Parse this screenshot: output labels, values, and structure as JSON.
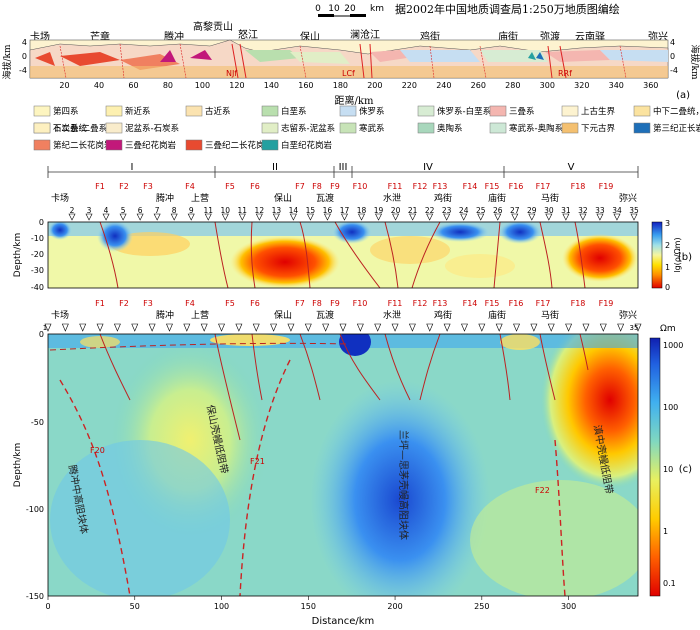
{
  "panel_a": {
    "scale_bar": {
      "ticks": [
        "0",
        "10",
        "20"
      ],
      "unit": "km"
    },
    "source_note": "据2002年中国地质调查局1:250万地质图编绘",
    "ylabel_left": "海拔/km",
    "ylabel_right": "海拔/km",
    "yticks": [
      "4",
      "0",
      "-4"
    ],
    "xlabel": "距离/km",
    "xticks": [
      "20",
      "40",
      "60",
      "80",
      "100",
      "120",
      "140",
      "160",
      "180",
      "200",
      "220",
      "240",
      "260",
      "280",
      "300",
      "320",
      "340",
      "360"
    ],
    "places": [
      "卡场",
      "芒章",
      "腾冲",
      "高黎贡山",
      "怒江",
      "保山",
      "澜沧江",
      "鸡街",
      "庙街",
      "弥渡",
      "云南驿",
      "弥兴"
    ],
    "faults": [
      "NJf",
      "LCf",
      "RRf"
    ],
    "panel_label": "(a)"
  },
  "legend": {
    "items": [
      {
        "label": "第四系",
        "color": "#fdf5c0"
      },
      {
        "label": "新近系",
        "color": "#fdf0b0"
      },
      {
        "label": "古近系",
        "color": "#fbe3b0"
      },
      {
        "label": "白垩系",
        "color": "#b9dfae"
      },
      {
        "label": "侏罗系",
        "color": "#c6def2"
      },
      {
        "label": "侏罗系-白垩系",
        "color": "#d7ecd3"
      },
      {
        "label": "三叠系",
        "color": "#f4b6b0"
      },
      {
        "label": "上古生界",
        "color": "#fdf3d0"
      },
      {
        "label": "中下二叠统，峨眉山玄武岩",
        "color": "#fbe3a0"
      },
      {
        "label": "石炭系-二叠系",
        "color": "#f6d8c6"
      },
      {
        "label": "泥盆系-石炭系",
        "color": "#f9eccb"
      },
      {
        "label": "志留系-泥盆系",
        "color": "#e1eec6"
      },
      {
        "label": "寒武系",
        "color": "#c7e3b7"
      },
      {
        "label": "奥陶系",
        "color": "#a8d7bc"
      },
      {
        "label": "寒武系-奥陶系",
        "color": "#cde8d6"
      },
      {
        "label": "下元古界",
        "color": "#f4c070"
      },
      {
        "label": "第三纪正长岩",
        "color": "#1e6fb8"
      },
      {
        "label": "下二叠统",
        "color": "#fdf0c0"
      },
      {
        "label": "第纪二长花岗岩",
        "color": "#f08060"
      },
      {
        "label": "三叠纪花岗岩",
        "color": "#c2187a"
      },
      {
        "label": "三叠纪二长花岗岩",
        "color": "#e84a30"
      },
      {
        "label": "白垩纪花岗岩",
        "color": "#24a0a0"
      }
    ]
  },
  "zones": [
    "I",
    "II",
    "III",
    "IV",
    "V"
  ],
  "panel_b": {
    "faults": [
      "F1",
      "F2",
      "F3",
      "F4",
      "F5",
      "F6",
      "F7",
      "F8",
      "F9",
      "F10",
      "F11",
      "F12",
      "F13",
      "F14",
      "F15",
      "F16",
      "F17",
      "F18",
      "F19"
    ],
    "places": [
      "卡场",
      "腾冲",
      "上营",
      "保山",
      "瓦渡",
      "水泄",
      "鸡街",
      "庙街",
      "马街",
      "弥兴"
    ],
    "stations": [
      "2",
      "3",
      "4",
      "5",
      "6",
      "7",
      "8",
      "9",
      "11",
      "10",
      "11",
      "12",
      "13",
      "14",
      "15",
      "16",
      "17",
      "18",
      "19",
      "20",
      "21",
      "22",
      "23",
      "24",
      "25",
      "26",
      "27",
      "29",
      "30",
      "31",
      "32",
      "33",
      "34",
      "35"
    ],
    "ylabel": "Depth/km",
    "yticks": [
      "0",
      "-10",
      "-20",
      "-30",
      "-40"
    ],
    "colorbar_label": "lg(ρ/Ωm)",
    "colorbar_ticks": [
      "3",
      "2",
      "1",
      "0"
    ],
    "panel_label": "(b)"
  },
  "panel_c": {
    "faults": [
      "F1",
      "F2",
      "F3",
      "F4",
      "F5",
      "F6",
      "F7",
      "F8",
      "F9",
      "F10",
      "F11",
      "F12",
      "F13",
      "F14",
      "F15",
      "F16",
      "F17",
      "F18",
      "F19"
    ],
    "places": [
      "卡场",
      "腾冲",
      "上营",
      "保山",
      "瓦渡",
      "水泄",
      "鸡街",
      "庙街",
      "马街",
      "弥兴"
    ],
    "deep_faults": [
      "F20",
      "F21",
      "F22"
    ],
    "bodies": [
      "腾冲中高阻块体",
      "保山壳幔低阻带",
      "兰坪—思茅壳幔高阻块体",
      "滇中壳幔低阻带"
    ],
    "ylabel": "Depth/km",
    "xlabel": "Distance/km",
    "yticks": [
      "0",
      "-50",
      "-100",
      "-150"
    ],
    "xticks": [
      "0",
      "50",
      "100",
      "150",
      "200",
      "250",
      "300"
    ],
    "colorbar_label": "Ωm",
    "colorbar_ticks": [
      "1000",
      "100",
      "10",
      "1",
      "0.1"
    ],
    "panel_label": "(c)",
    "station_first": "1",
    "station_last": "35"
  },
  "chart_data": [
    {
      "type": "heatmap",
      "title": "",
      "xlabel": "距离/km",
      "ylabel": "海拔/km",
      "ylim": [
        -6,
        4
      ],
      "xlim": [
        0,
        370
      ],
      "note": "geological cross-section"
    },
    {
      "type": "heatmap",
      "xlabel": "",
      "ylabel": "Depth/km",
      "ylim": [
        -40,
        0
      ],
      "xlim": [
        0,
        340
      ],
      "colorbar": {
        "label": "lg(ρ/Ωm)",
        "range": [
          0,
          3
        ]
      },
      "anomalies": [
        {
          "x": 130,
          "depth": -25,
          "log_rho": 0.2
        },
        {
          "x": 310,
          "depth": -22,
          "log_rho": 0.3
        },
        {
          "x": 40,
          "depth": -8,
          "log_rho": 2.6
        },
        {
          "x": 175,
          "depth": -3,
          "log_rho": 2.8
        },
        {
          "x": 280,
          "depth": -5,
          "log_rho": 2.6
        }
      ]
    },
    {
      "type": "heatmap",
      "xlabel": "Distance/km",
      "ylabel": "Depth/km",
      "ylim": [
        -150,
        0
      ],
      "xlim": [
        0,
        340
      ],
      "colorbar": {
        "label": "Ωm",
        "range": [
          0.1,
          1000
        ],
        "scale": "log"
      },
      "anomalies": [
        {
          "x": 320,
          "depth": -45,
          "rho": 0.3
        },
        {
          "x": 210,
          "depth": -90,
          "rho": 1000
        },
        {
          "x": 175,
          "depth": -8,
          "rho": 1000
        },
        {
          "x": 100,
          "depth": -40,
          "rho": 5
        }
      ]
    }
  ]
}
